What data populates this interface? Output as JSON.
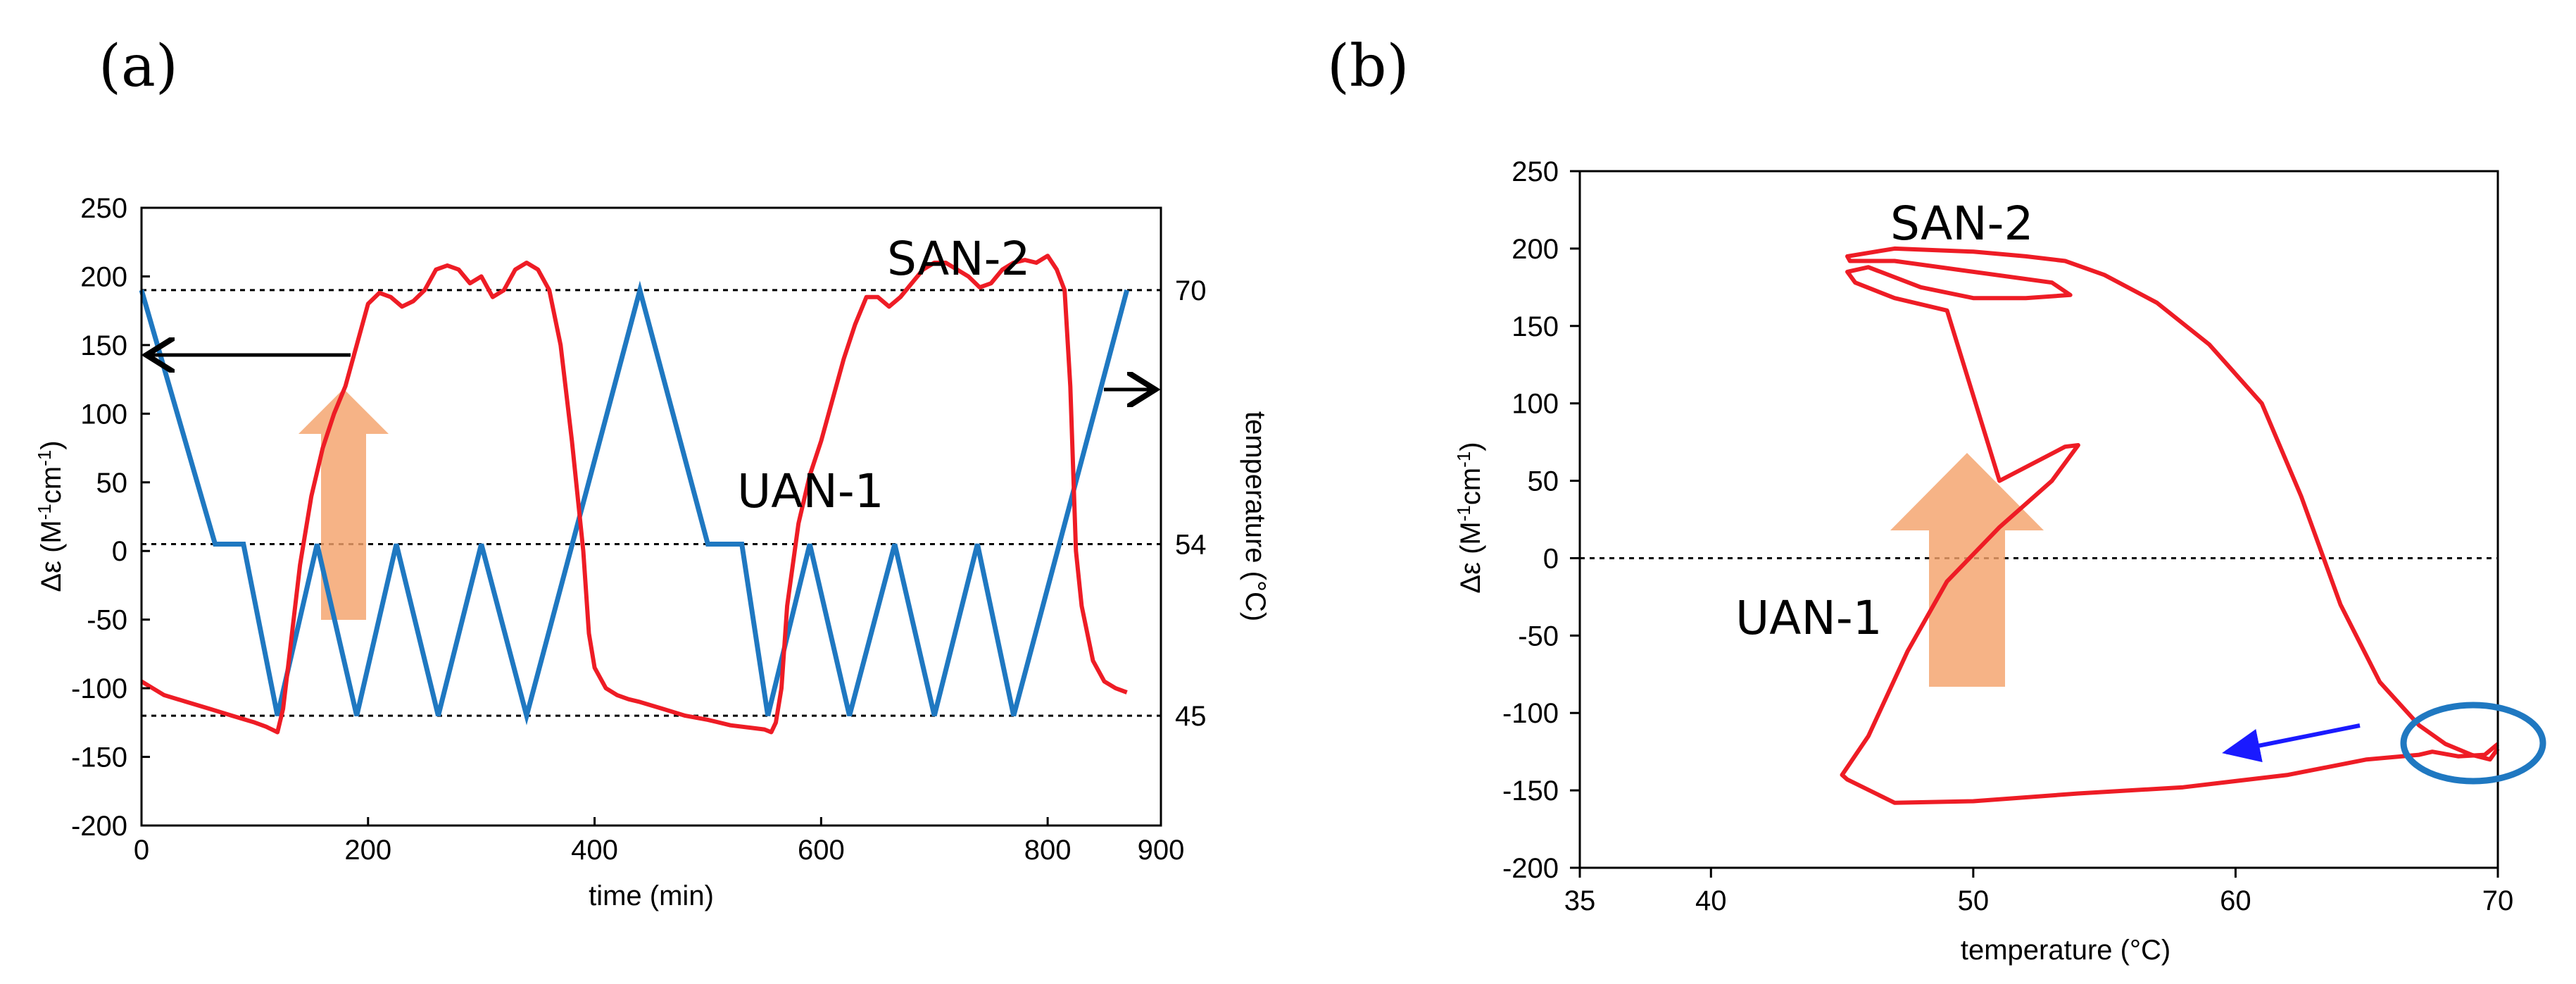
{
  "panels": [
    {
      "label": "(a)"
    },
    {
      "label": "(b)"
    }
  ],
  "chart_data": [
    {
      "type": "line",
      "panel": "(a)",
      "title": "",
      "xlabel": "time (min)",
      "ylabel_main": "Δε",
      "ylabel_unit_prefix": " (M",
      "ylabel_sup1": "-1",
      "ylabel_mid": "cm",
      "ylabel_sup2": "-1",
      "ylabel_suffix": ")",
      "y2label": "temperature (°C)",
      "xlim": [
        0,
        900
      ],
      "ylim": [
        -200,
        250
      ],
      "x_ticks": [
        "0",
        "200",
        "400",
        "600",
        "800",
        "900"
      ],
      "y_ticks": [
        "250",
        "200",
        "150",
        "100",
        "50",
        "0",
        "-50",
        "-100",
        "-150",
        "-200"
      ],
      "y2_ticks": [
        {
          "label": "70",
          "temp": 70,
          "y_equiv": 190
        },
        {
          "label": "54",
          "temp": 54,
          "y_equiv": 5
        },
        {
          "label": "45",
          "temp": 45,
          "y_equiv": -120
        }
      ],
      "reference_lines_y": [
        190,
        5,
        -120
      ],
      "series": [
        {
          "name": "Δε",
          "color": "#ee1c25",
          "axis": "left",
          "x": [
            0,
            20,
            40,
            60,
            80,
            100,
            110,
            115,
            120,
            125,
            130,
            140,
            150,
            160,
            170,
            180,
            190,
            200,
            210,
            220,
            230,
            240,
            250,
            260,
            270,
            280,
            290,
            300,
            310,
            320,
            330,
            340,
            350,
            360,
            370,
            380,
            390,
            395,
            400,
            410,
            420,
            430,
            440,
            460,
            480,
            500,
            520,
            540,
            550,
            556,
            560,
            565,
            570,
            580,
            590,
            600,
            610,
            620,
            630,
            640,
            650,
            660,
            670,
            680,
            690,
            700,
            710,
            720,
            730,
            740,
            750,
            760,
            770,
            780,
            790,
            800,
            808,
            815,
            820,
            825,
            830,
            840,
            850,
            860,
            870
          ],
          "values": [
            -95,
            -105,
            -110,
            -115,
            -120,
            -125,
            -128,
            -130,
            -132,
            -115,
            -80,
            -10,
            40,
            75,
            100,
            120,
            150,
            180,
            188,
            185,
            178,
            182,
            190,
            205,
            208,
            205,
            195,
            200,
            185,
            190,
            205,
            210,
            205,
            190,
            150,
            80,
            0,
            -60,
            -85,
            -100,
            -105,
            -108,
            -110,
            -115,
            -120,
            -123,
            -127,
            -129,
            -130,
            -132,
            -125,
            -100,
            -40,
            20,
            55,
            80,
            110,
            140,
            165,
            185,
            185,
            178,
            185,
            195,
            205,
            210,
            210,
            205,
            200,
            192,
            195,
            205,
            210,
            212,
            210,
            215,
            205,
            190,
            120,
            0,
            -40,
            -80,
            -95,
            -100,
            -103
          ]
        },
        {
          "name": "temperature",
          "color": "#1f78c1",
          "axis": "right",
          "x": [
            0,
            65,
            90,
            120,
            155,
            190,
            225,
            262,
            300,
            340,
            440,
            500,
            530,
            553,
            590,
            625,
            665,
            700,
            738,
            770,
            870
          ],
          "values": [
            190,
            5,
            5,
            -120,
            5,
            -120,
            5,
            -120,
            5,
            -120,
            190,
            5,
            5,
            -120,
            5,
            -120,
            5,
            -120,
            5,
            -120,
            190
          ]
        }
      ],
      "annotations": [
        {
          "text": "SAN-2",
          "x": 605,
          "y": 205
        },
        {
          "text": "UAN-1",
          "x": 470,
          "y": 42
        }
      ],
      "arrows": [
        {
          "direction": "left",
          "color": "#000000",
          "meaning": "red curve uses left axis"
        },
        {
          "direction": "right",
          "color": "#000000",
          "meaning": "blue curve uses right axis"
        },
        {
          "direction": "up",
          "color": "#f0a070",
          "meaning": "UAN-1 to SAN-2 transition"
        }
      ]
    },
    {
      "type": "line",
      "panel": "(b)",
      "title": "",
      "xlabel": "temperature (°C)",
      "ylabel_main": "Δε",
      "ylabel_unit_prefix": " (M",
      "ylabel_sup1": "-1",
      "ylabel_mid": "cm",
      "ylabel_sup2": "-1",
      "ylabel_suffix": ")",
      "xlim": [
        35,
        70
      ],
      "ylim": [
        -200,
        250
      ],
      "x_ticks": [
        "35",
        "40",
        "50",
        "60",
        "70"
      ],
      "y_ticks": [
        "250",
        "200",
        "150",
        "100",
        "50",
        "0",
        "-50",
        "-100",
        "-150",
        "-200"
      ],
      "reference_lines_y": [
        0
      ],
      "series": [
        {
          "name": "Δε vs temperature",
          "color": "#ee1c25",
          "x": [
            70,
            69.5,
            68.5,
            67.5,
            67,
            65,
            62,
            58,
            54,
            50,
            47,
            45.2,
            45,
            46,
            47.5,
            49,
            51,
            53,
            54,
            53.5,
            51,
            49,
            47,
            45.5,
            45.2,
            46,
            48,
            50,
            52,
            53.7,
            53,
            50,
            47,
            45.3,
            45.2,
            47,
            50,
            52,
            53.5,
            55,
            57,
            59,
            61,
            62.5,
            64,
            65.5,
            67,
            68,
            69,
            69.7,
            70
          ],
          "values": [
            -120,
            -127,
            -128,
            -125,
            -127,
            -130,
            -140,
            -148,
            -152,
            -157,
            -158,
            -143,
            -140,
            -115,
            -60,
            -15,
            20,
            50,
            73,
            72,
            50,
            160,
            168,
            178,
            185,
            188,
            175,
            168,
            168,
            170,
            178,
            185,
            192,
            192,
            195,
            200,
            198,
            195,
            192,
            183,
            165,
            138,
            100,
            40,
            -30,
            -80,
            -108,
            -120,
            -127,
            -130,
            -123
          ]
        }
      ],
      "annotations": [
        {
          "text": "SAN-2",
          "x": 50.5,
          "y": 218
        },
        {
          "text": "UAN-1",
          "x": 44.7,
          "y": -40
        }
      ],
      "arrows": [
        {
          "direction": "up",
          "color": "#f0a070",
          "meaning": "UAN-1 to SAN-2 transition"
        },
        {
          "direction": "left-down",
          "color": "#1a1aff",
          "meaning": "cooling direction"
        }
      ],
      "highlight": {
        "shape": "ellipse",
        "color": "#1f78c1",
        "center_x": 68.9,
        "center_y": -124
      }
    }
  ]
}
